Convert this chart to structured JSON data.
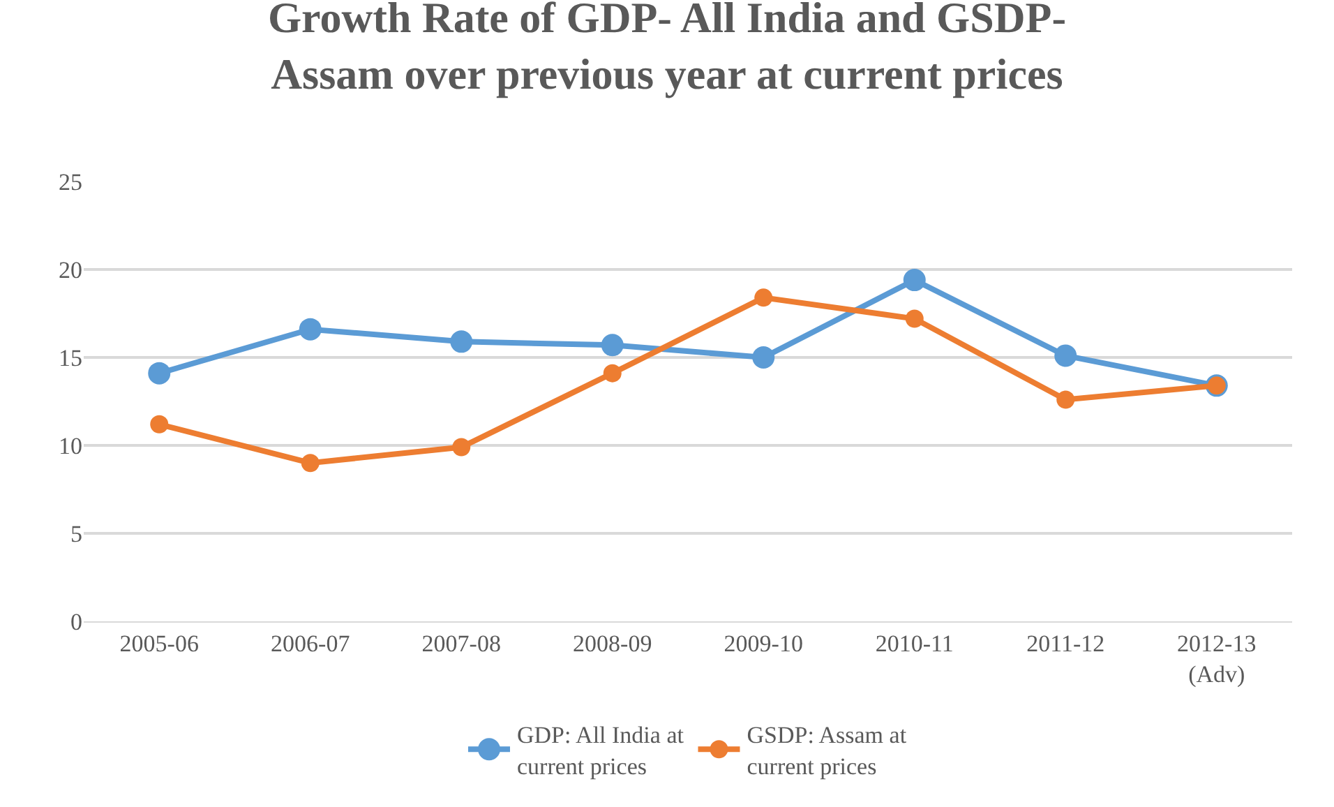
{
  "chart_data": {
    "type": "line",
    "title": "Growth Rate of GDP- All India and GSDP-\nAssam over previous year at current prices",
    "categories": [
      "2005-06",
      "2006-07",
      "2007-08",
      "2008-09",
      "2009-10",
      "2010-11",
      "2011-12",
      "2012-13\n(Adv)"
    ],
    "series": [
      {
        "name": "GDP: All India at\ncurrent prices",
        "color": "#5b9bd5",
        "values": [
          14.1,
          16.6,
          15.9,
          15.7,
          15.0,
          19.4,
          15.1,
          13.4
        ]
      },
      {
        "name": "GSDP: Assam at\ncurrent prices",
        "color": "#ed7d31",
        "values": [
          11.2,
          9.0,
          9.9,
          14.1,
          18.4,
          17.2,
          12.6,
          13.4
        ]
      }
    ],
    "ylim": [
      0,
      25
    ],
    "yticks": [
      0,
      5,
      10,
      15,
      20,
      25
    ],
    "grid": "y",
    "legend": "bottom",
    "marker": "circle",
    "line_style": "solid"
  }
}
